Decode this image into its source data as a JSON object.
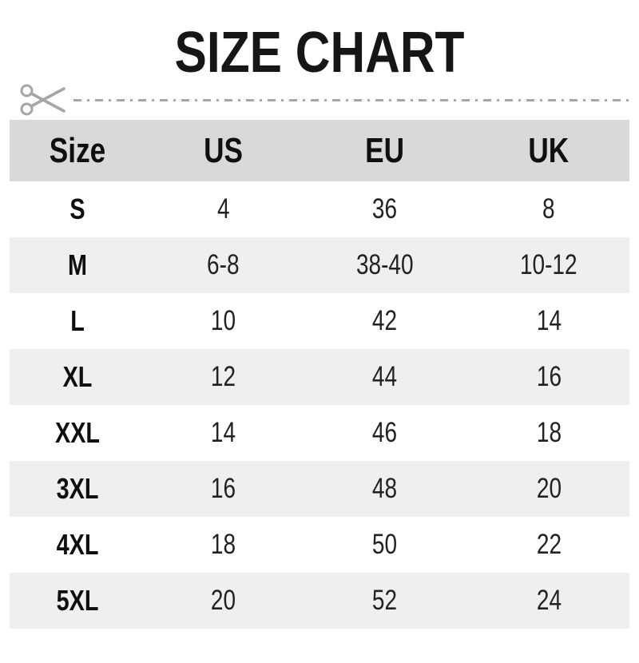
{
  "title": "SIZE CHART",
  "cut_line": {
    "icon": "scissors",
    "style": "dash-dot"
  },
  "colors": {
    "page_bg": "#ffffff",
    "title_text": "#161616",
    "header_bg": "#d9d9d9",
    "stripe_bg": "#efefef",
    "row_bg": "#ffffff",
    "label_text": "#0f0f0f",
    "value_text": "#222222",
    "cut_line": "#a6a6a6"
  },
  "chart_data": {
    "type": "table",
    "title": "SIZE CHART",
    "columns": [
      "Size",
      "US",
      "EU",
      "UK"
    ],
    "rows": [
      {
        "size": "S",
        "us": "4",
        "eu": "36",
        "uk": "8"
      },
      {
        "size": "M",
        "us": "6-8",
        "eu": "38-40",
        "uk": "10-12"
      },
      {
        "size": "L",
        "us": "10",
        "eu": "42",
        "uk": "14"
      },
      {
        "size": "XL",
        "us": "12",
        "eu": "44",
        "uk": "16"
      },
      {
        "size": "XXL",
        "us": "14",
        "eu": "46",
        "uk": "18"
      },
      {
        "size": "3XL",
        "us": "16",
        "eu": "48",
        "uk": "20"
      },
      {
        "size": "4XL",
        "us": "18",
        "eu": "50",
        "uk": "22"
      },
      {
        "size": "5XL",
        "us": "20",
        "eu": "52",
        "uk": "24"
      }
    ],
    "striped_row_sizes": [
      "M",
      "XL",
      "3XL",
      "5XL"
    ]
  }
}
